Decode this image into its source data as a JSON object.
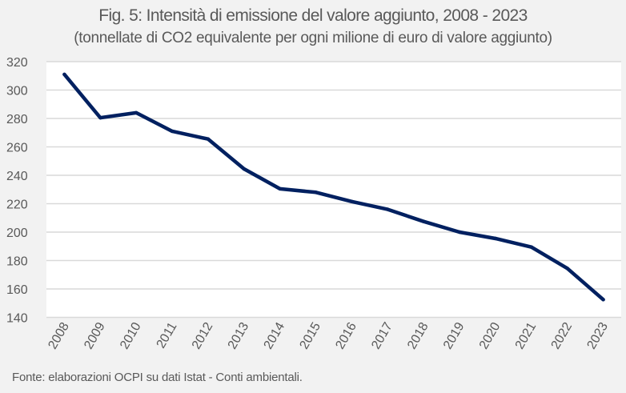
{
  "chart_data": {
    "type": "line",
    "title": "Fig. 5: Intensità di emissione del valore aggiunto, 2008 - 2023",
    "subtitle": "(tonnellate di CO2 equivalente per ogni milione di euro di valore aggiunto)",
    "xlabel": "",
    "ylabel": "",
    "categories": [
      "2008",
      "2009",
      "2010",
      "2011",
      "2012",
      "2013",
      "2014",
      "2015",
      "2016",
      "2017",
      "2018",
      "2019",
      "2020",
      "2021",
      "2022",
      "2023"
    ],
    "series": [
      {
        "name": "Intensità di emissione",
        "color": "#002060",
        "values": [
          311,
          280.5,
          284,
          271,
          265.5,
          244.5,
          230.5,
          228,
          221.5,
          216,
          207.5,
          200,
          195.5,
          189.5,
          174.5,
          152.5
        ]
      }
    ],
    "ylim": [
      140,
      320
    ],
    "yticks": [
      140,
      160,
      180,
      200,
      220,
      240,
      260,
      280,
      300,
      320
    ],
    "grid": true,
    "legend": "none",
    "source": "Fonte: elaborazioni OCPI su dati Istat - Conti ambientali."
  },
  "colors": {
    "background": "#f2f2f2",
    "plot_background": "#ffffff",
    "gridline": "#d9d9d9",
    "line": "#002060",
    "text": "#595959"
  }
}
